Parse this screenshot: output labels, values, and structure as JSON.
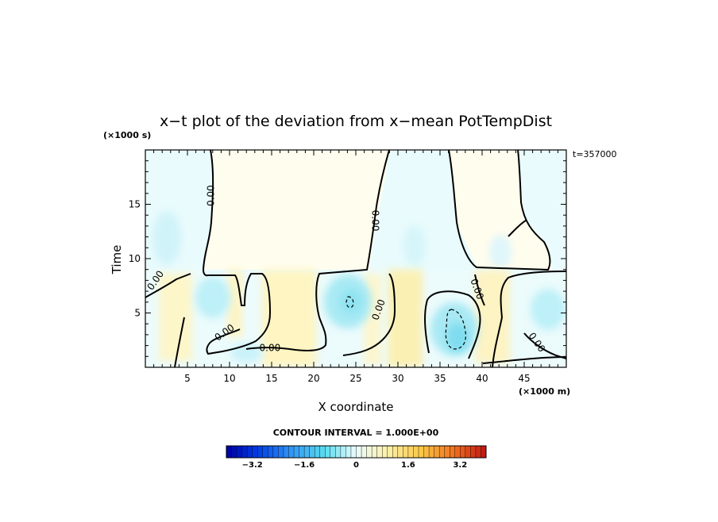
{
  "chart_data": {
    "type": "heatmap",
    "title": "x−t plot of the deviation from x−mean PotTempDist",
    "y_unit": "(×1000 s)",
    "x_unit": "(×1000 m)",
    "time_label": "t=357000",
    "xlabel": "X coordinate",
    "ylabel": "Time",
    "xlim": [
      0,
      50
    ],
    "ylim": [
      0,
      20
    ],
    "x_ticks": [
      5,
      10,
      15,
      20,
      25,
      30,
      35,
      40,
      45
    ],
    "y_ticks": [
      5,
      10,
      15
    ],
    "contour_labels": [
      {
        "text": "0.00",
        "x": 7.8,
        "y": 15.8,
        "rot": -90
      },
      {
        "text": "0.00",
        "x": 27.3,
        "y": 13.5,
        "rot": 90
      },
      {
        "text": "0.00",
        "x": 1.2,
        "y": 8.0,
        "rot": -55
      },
      {
        "text": "0.00",
        "x": 9.4,
        "y": 3.2,
        "rot": -35
      },
      {
        "text": "0.00",
        "x": 14.8,
        "y": 1.8,
        "rot": 0
      },
      {
        "text": "0.00",
        "x": 27.7,
        "y": 5.3,
        "rot": -70
      },
      {
        "text": "0.00",
        "x": 39.4,
        "y": 7.2,
        "rot": 70
      },
      {
        "text": "0.00",
        "x": 46.5,
        "y": 2.3,
        "rot": 55
      }
    ],
    "colorbar": {
      "title": "CONTOUR INTERVAL = 1.000E+00",
      "min": -4.0,
      "max": 4.0,
      "tick_labels": [
        "−3.2",
        "−1.6",
        "0",
        "1.6",
        "3.2"
      ],
      "tick_values": [
        -3.2,
        -1.6,
        0,
        1.6,
        3.2
      ]
    }
  }
}
